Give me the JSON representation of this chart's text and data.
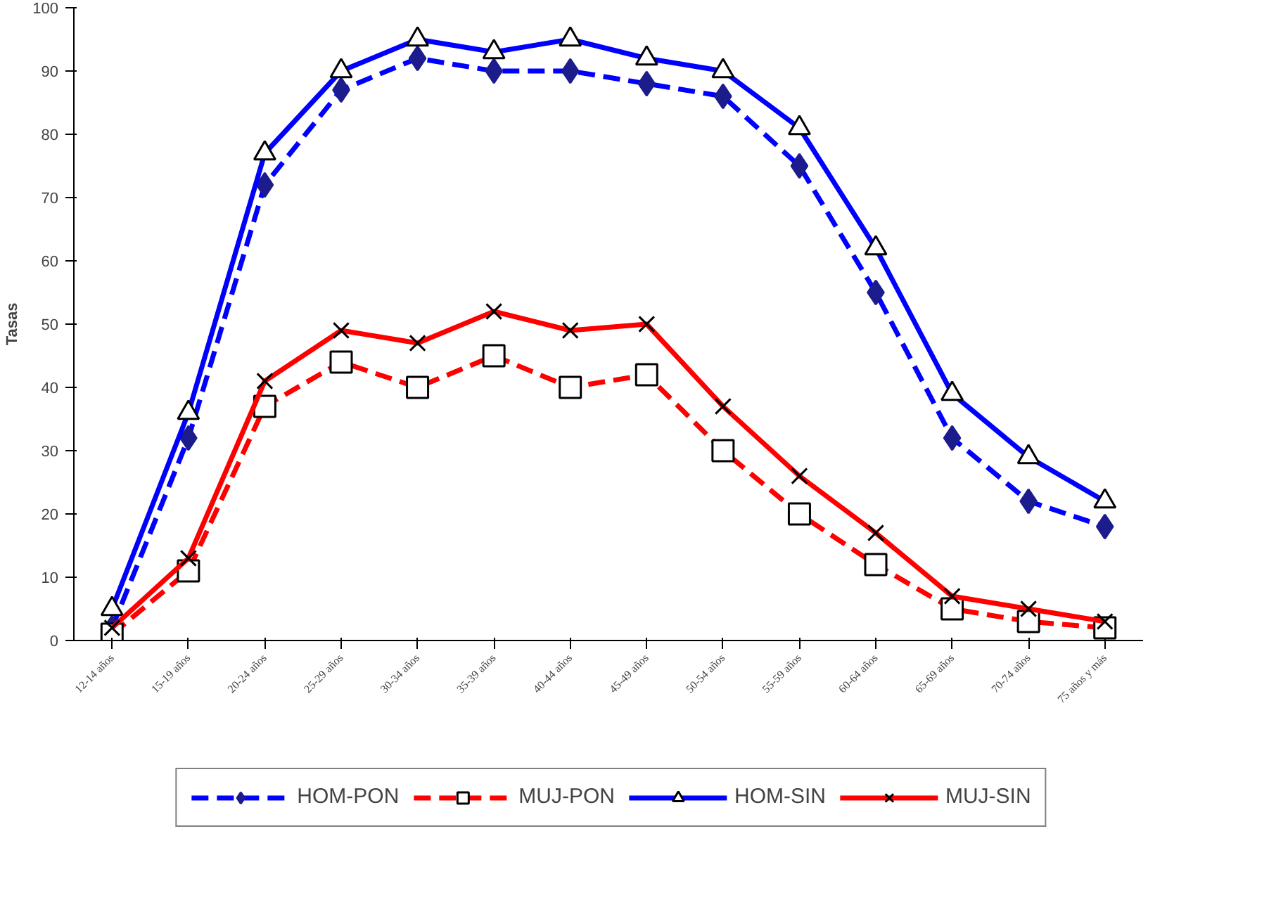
{
  "chart_data": {
    "type": "line",
    "ylabel": "Tasas",
    "categories": [
      "12-14 años",
      "15-19 años",
      "20-24 años",
      "25-29 años",
      "30-34 años",
      "35-39 años",
      "40-44 años",
      "45-49 años",
      "50-54 años",
      "55-59 años",
      "60-64 años",
      "65-69 años",
      "70-74 años",
      "75 años y más"
    ],
    "ylim": [
      0,
      100
    ],
    "yticks": [
      0,
      10,
      20,
      30,
      40,
      50,
      60,
      70,
      80,
      90,
      100
    ],
    "grid": false,
    "legend": "bottom",
    "series": [
      {
        "name": "HOM-PON",
        "color": "#0000ff",
        "marker": "diamond",
        "line_style": "dashed",
        "values": [
          2,
          32,
          72,
          87,
          92,
          90,
          90,
          88,
          86,
          75,
          55,
          32,
          22,
          18
        ]
      },
      {
        "name": "MUJ-PON",
        "color": "#ff0000",
        "marker": "square",
        "line_style": "dashed",
        "values": [
          1,
          11,
          37,
          44,
          40,
          45,
          40,
          42,
          30,
          20,
          12,
          5,
          3,
          2
        ]
      },
      {
        "name": "HOM-SIN",
        "color": "#0000ff",
        "marker": "triangle",
        "line_style": "solid",
        "values": [
          5,
          36,
          77,
          90,
          95,
          93,
          95,
          92,
          90,
          81,
          62,
          39,
          29,
          22
        ]
      },
      {
        "name": "MUJ-SIN",
        "color": "#ff0000",
        "marker": "cross",
        "line_style": "solid",
        "values": [
          2,
          13,
          41,
          49,
          47,
          52,
          49,
          50,
          37,
          26,
          17,
          7,
          5,
          3
        ]
      }
    ]
  }
}
